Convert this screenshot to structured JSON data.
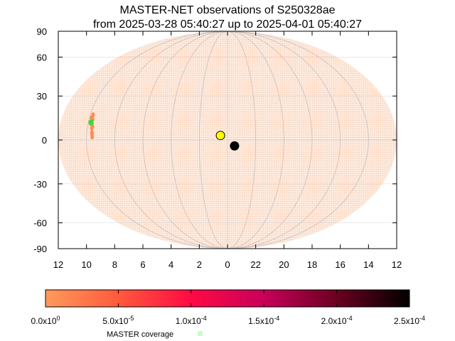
{
  "chart_data": {
    "type": "scatter",
    "title_line1": "MASTER-NET observations of S250328ae",
    "title_line2": "from 2025-03-28 05:40:27 up to 2025-04-01 05:40:27",
    "projection": "mollweide",
    "y_ticks": [
      "90",
      "60",
      "30",
      "0",
      "-30",
      "-60",
      "-90"
    ],
    "y_tick_values": [
      90,
      60,
      30,
      0,
      -30,
      -60,
      -90
    ],
    "x_ticks": [
      "12",
      "10",
      "8",
      "6",
      "4",
      "2",
      "0",
      "22",
      "20",
      "18",
      "16",
      "14",
      "12"
    ],
    "x_tick_hours": [
      12,
      10,
      8,
      6,
      4,
      2,
      0,
      -2,
      -4,
      -6,
      -8,
      -10,
      -12
    ],
    "ylim": [
      -90,
      90
    ],
    "grid": true,
    "colors": {
      "sky_fill": "#fde9dc",
      "sky_dot": "#f5c7aa",
      "grid": "#bbbbbb",
      "coverage_points": "#ff8c55",
      "master_coverage": "#33dd33",
      "sun": "#ffff00",
      "moon": "#000000"
    },
    "probability_region": [
      {
        "ra_h": 9.8,
        "dec": 17
      },
      {
        "ra_h": 9.75,
        "dec": 14
      },
      {
        "ra_h": 9.72,
        "dec": 11
      },
      {
        "ra_h": 9.68,
        "dec": 8
      },
      {
        "ra_h": 9.64,
        "dec": 5
      },
      {
        "ra_h": 9.6,
        "dec": 2
      },
      {
        "ra_h": 9.85,
        "dec": 15
      },
      {
        "ra_h": 9.66,
        "dec": 9
      },
      {
        "ra_h": 9.62,
        "dec": 4
      }
    ],
    "master_coverage_points": [
      {
        "ra_h": 9.86,
        "dec": 12
      },
      {
        "ra_h": 9.8,
        "dec": 11
      },
      {
        "ra_h": 9.78,
        "dec": 12.5
      }
    ],
    "sun": {
      "ra_h": 0.5,
      "dec": 3
    },
    "moon": {
      "ra_h": -0.5,
      "dec": -4
    },
    "colorbar": {
      "min": 0,
      "max": 0.00025,
      "tick_labels": [
        "0.0x10",
        "5.0x10",
        "1.0x10",
        "1.5x10",
        "2.0x10",
        "2.5x10"
      ],
      "tick_exponents": [
        "0",
        "-5",
        "-4",
        "-4",
        "-4",
        "-4"
      ],
      "tick_values": [
        0,
        5e-05,
        0.0001,
        0.00015,
        0.0002,
        0.00025
      ],
      "gradient_colors": [
        "#ff9a5c",
        "#ff5a3c",
        "#ff0a44",
        "#c8005a",
        "#6a0020",
        "#000000"
      ]
    },
    "legend": {
      "label": "MASTER coverage"
    }
  }
}
